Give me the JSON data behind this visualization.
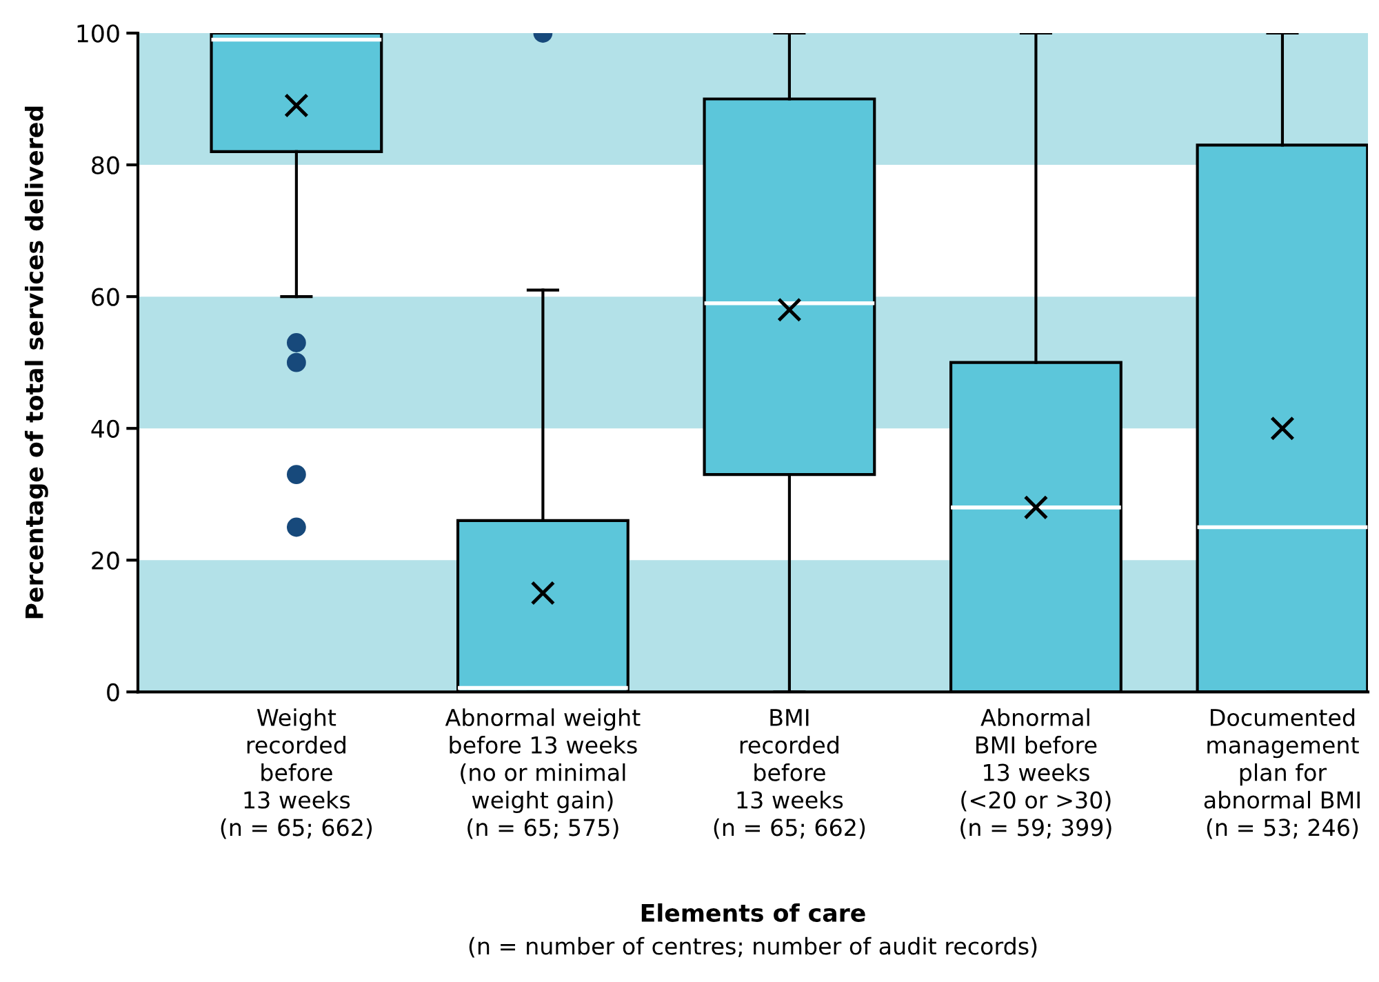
{
  "chart_data": {
    "type": "box",
    "ylabel": "Percentage of total services delivered",
    "xlabel": "Elements of care",
    "annotations": [
      "(n = number of centres; number of audit records)"
    ],
    "categories": [
      "Weight\nrecorded\nbefore\n13 weeks\n(n = 65; 662)",
      "Abnormal weight\nbefore 13 weeks\n(no or minimal\nweight gain)\n(n = 65; 575)",
      "BMI\nrecorded\nbefore\n13 weeks\n(n = 65; 662)",
      "Abnormal\nBMI before\n13 weeks\n(<20 or >30)\n(n = 59; 399)",
      "Documented\nmanagement\nplan for\nabnormal BMI\n(n = 53; 246)"
    ],
    "color": "#5cc6da",
    "boxes": [
      {
        "low": 60,
        "q1": 82,
        "median": 99,
        "q3": 100,
        "high": 100,
        "mean": 89,
        "outliers": [
          53,
          50,
          33,
          25
        ]
      },
      {
        "low": 0,
        "q1": 0,
        "median": 0.6,
        "q3": 26,
        "high": 61,
        "mean": 15,
        "outliers": [
          100
        ]
      },
      {
        "low": 0,
        "q1": 33,
        "median": 59,
        "q3": 90,
        "high": 100,
        "mean": 58
      },
      {
        "low": 0,
        "q1": 0,
        "median": 28,
        "q3": 50,
        "high": 100,
        "mean": 28
      },
      {
        "low": 0,
        "q1": 0,
        "median": 25,
        "q3": 83,
        "high": 100,
        "mean": 40
      }
    ],
    "ylim": [
      0,
      100
    ],
    "yticks": [
      0,
      20,
      40,
      60,
      80,
      100
    ],
    "bands": [
      {
        "axis": "y",
        "from": 0,
        "to": 20,
        "color": "#b3e1e8"
      },
      {
        "axis": "y",
        "from": 40,
        "to": 60,
        "color": "#b3e1e8"
      },
      {
        "axis": "y",
        "from": 80,
        "to": 100,
        "color": "#b3e1e8"
      }
    ]
  }
}
